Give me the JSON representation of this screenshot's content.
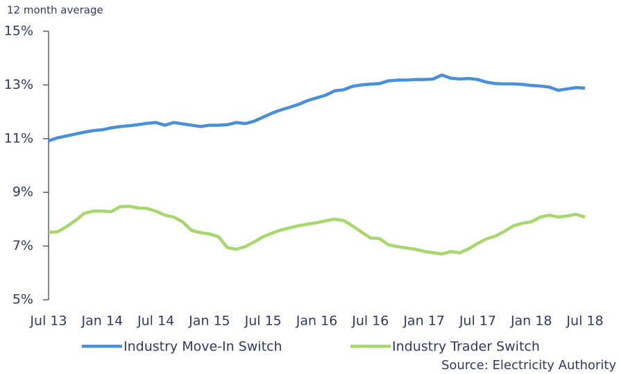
{
  "chart_data": {
    "type": "line",
    "y_label": "12 month average",
    "source": "Source: Electricity Authority",
    "categories": [
      "Jul 13",
      null,
      null,
      null,
      null,
      null,
      "Jan 14",
      null,
      null,
      null,
      null,
      null,
      "Jul 14",
      null,
      null,
      null,
      null,
      null,
      "Jan 15",
      null,
      null,
      null,
      null,
      null,
      "Jul 15",
      null,
      null,
      null,
      null,
      null,
      "Jan 16",
      null,
      null,
      null,
      null,
      null,
      "Jul 16",
      null,
      null,
      null,
      null,
      null,
      "Jan 17",
      null,
      null,
      null,
      null,
      null,
      "Jul 17",
      null,
      null,
      null,
      null,
      null,
      "Jan 18",
      null,
      null,
      null,
      null,
      null,
      "Jul 18"
    ],
    "series": [
      {
        "name": "Industry Move-In Switch",
        "color": "#4a90d9",
        "values": [
          10.92,
          11.03,
          11.1,
          11.17,
          11.24,
          11.3,
          11.33,
          11.4,
          11.45,
          11.48,
          11.52,
          11.57,
          11.6,
          11.5,
          11.6,
          11.55,
          11.5,
          11.45,
          11.5,
          11.5,
          11.52,
          11.6,
          11.56,
          11.65,
          11.8,
          11.95,
          12.07,
          12.17,
          12.28,
          12.42,
          12.52,
          12.62,
          12.78,
          12.82,
          12.95,
          13.0,
          13.03,
          13.05,
          13.15,
          13.18,
          13.18,
          13.2,
          13.2,
          13.22,
          13.37,
          13.25,
          13.22,
          13.24,
          13.2,
          13.1,
          13.05,
          13.04,
          13.04,
          13.02,
          12.98,
          12.96,
          12.92,
          12.8,
          12.85,
          12.9,
          12.88
        ]
      },
      {
        "name": "Industry Trader Switch",
        "color": "#a6d86e",
        "values": [
          7.51,
          7.53,
          7.72,
          7.95,
          8.22,
          8.3,
          8.3,
          8.28,
          8.47,
          8.48,
          8.42,
          8.4,
          8.3,
          8.15,
          8.08,
          7.9,
          7.58,
          7.5,
          7.45,
          7.35,
          6.94,
          6.88,
          6.98,
          7.15,
          7.35,
          7.48,
          7.6,
          7.68,
          7.76,
          7.82,
          7.87,
          7.94,
          8.0,
          7.95,
          7.75,
          7.52,
          7.3,
          7.28,
          7.05,
          6.98,
          6.93,
          6.88,
          6.8,
          6.75,
          6.7,
          6.8,
          6.75,
          6.9,
          7.1,
          7.27,
          7.37,
          7.55,
          7.75,
          7.85,
          7.9,
          8.08,
          8.15,
          8.08,
          8.12,
          8.18,
          8.08
        ]
      }
    ],
    "ylim": [
      5,
      15
    ],
    "yticks": [
      {
        "value": 5,
        "label": "5%"
      },
      {
        "value": 7,
        "label": "7%"
      },
      {
        "value": 9,
        "label": "9%"
      },
      {
        "value": 11,
        "label": "11%"
      },
      {
        "value": 13,
        "label": "13%"
      },
      {
        "value": 15,
        "label": "15%"
      }
    ],
    "grid": false
  }
}
